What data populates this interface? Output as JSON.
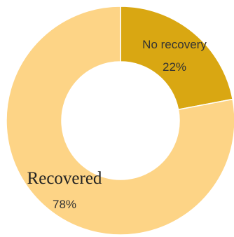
{
  "chart_data": {
    "type": "pie",
    "variant": "donut",
    "series": [
      {
        "slices": [
          {
            "label": "No recovery",
            "value": 22,
            "value_label": "22%",
            "color": "#D9A712"
          },
          {
            "label": "Recovered",
            "value": 78,
            "value_label": "78%",
            "color": "#FDD486"
          }
        ]
      }
    ],
    "start_angle_deg": 0,
    "direction": "clockwise",
    "legend": "none",
    "title": ""
  }
}
